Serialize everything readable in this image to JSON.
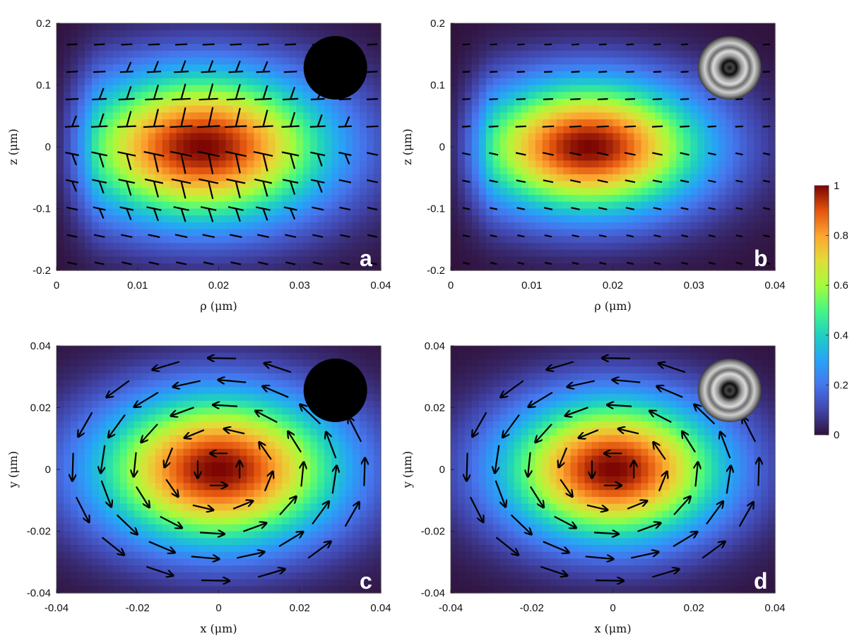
{
  "chart_data": [
    {
      "type": "heatmap",
      "panel_label": "a",
      "xlabel": "ρ (μm)",
      "ylabel": "z (μm)",
      "xlim": [
        0,
        0.04
      ],
      "ylim": [
        -0.2,
        0.2
      ],
      "xticks": [
        "0",
        "0.01",
        "0.02",
        "0.03",
        "0.04"
      ],
      "yticks": [
        "-0.2",
        "-0.1",
        "0",
        "0.1",
        "0.2"
      ],
      "field": {
        "center": [
          0.018,
          0.0
        ],
        "sigma": [
          0.011,
          0.085
        ],
        "max": 1.0
      },
      "vectors": "tilted quiver field, largest near the intensity peak",
      "inset": "solid black disk"
    },
    {
      "type": "heatmap",
      "panel_label": "b",
      "xlabel": "ρ (μm)",
      "ylabel": "z (μm)",
      "xlim": [
        0,
        0.04
      ],
      "ylim": [
        -0.2,
        0.2
      ],
      "xticks": [
        "0",
        "0.01",
        "0.02",
        "0.03",
        "0.04"
      ],
      "yticks": [
        "-0.2",
        "-0.1",
        "0",
        "0.1",
        "0.2"
      ],
      "field": {
        "center": [
          0.017,
          0.0
        ],
        "sigma": [
          0.01,
          0.075
        ],
        "max": 1.0
      },
      "vectors": "short near-horizontal quiver field",
      "inset": "grey ring pattern disk"
    },
    {
      "type": "heatmap",
      "panel_label": "c",
      "xlabel": "x (μm)",
      "ylabel": "y (μm)",
      "xlim": [
        -0.04,
        0.04
      ],
      "ylim": [
        -0.04,
        0.04
      ],
      "xticks": [
        "-0.04",
        "-0.02",
        "0",
        "0.02",
        "0.04"
      ],
      "yticks": [
        "-0.04",
        "-0.02",
        "0",
        "0.02",
        "0.04"
      ],
      "field": {
        "center": [
          0.0,
          0.0
        ],
        "sigma": [
          0.021,
          0.017
        ],
        "max": 1.0
      },
      "vectors": "counter-clockwise vortex arrows",
      "inset": "solid black disk"
    },
    {
      "type": "heatmap",
      "panel_label": "d",
      "xlabel": "x (μm)",
      "ylabel": "y (μm)",
      "xlim": [
        -0.04,
        0.04
      ],
      "ylim": [
        -0.04,
        0.04
      ],
      "xticks": [
        "-0.04",
        "-0.02",
        "0",
        "0.02",
        "0.04"
      ],
      "yticks": [
        "-0.04",
        "-0.02",
        "0",
        "0.02",
        "0.04"
      ],
      "field": {
        "center": [
          0.0,
          0.0
        ],
        "sigma": [
          0.019,
          0.016
        ],
        "max": 1.0
      },
      "vectors": "counter-clockwise vortex arrows",
      "inset": "grey ring pattern disk"
    }
  ],
  "colorbar": {
    "colormap": "turbo",
    "range": [
      0,
      1
    ],
    "ticks": [
      "0",
      "0.2",
      "0.4",
      "0.6",
      "0.8",
      "1"
    ]
  }
}
